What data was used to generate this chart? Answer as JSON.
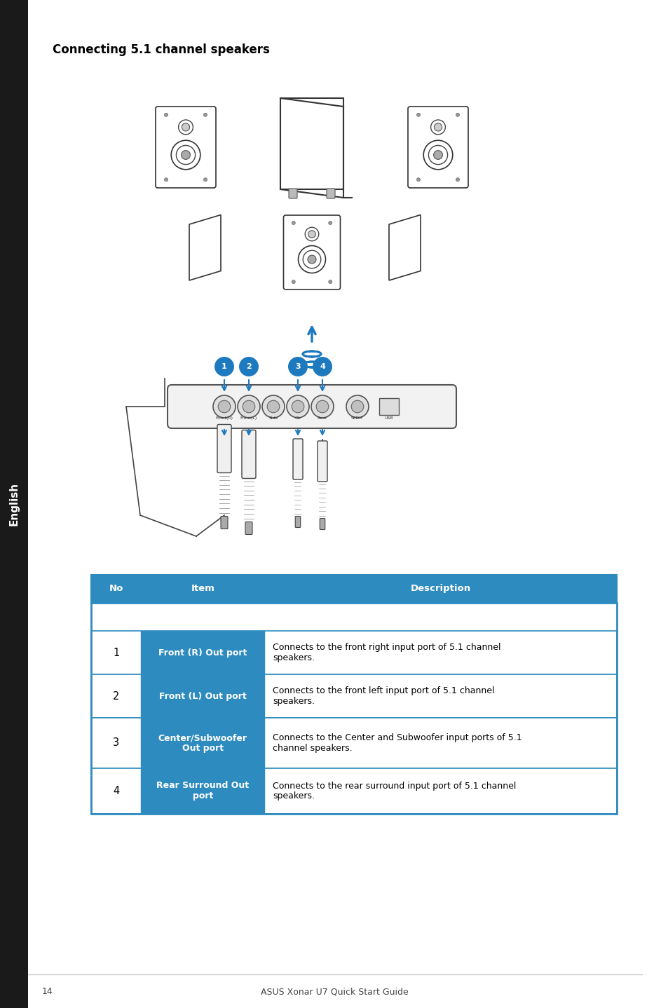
{
  "title": "Connecting 5.1 channel speakers",
  "title_fontsize": 12,
  "sidebar_label": "English",
  "sidebar_color": "#1a1a1a",
  "page_number": "14",
  "footer_text": "ASUS Xonar U7 Quick Start Guide",
  "table_header": [
    "No",
    "Item",
    "Description"
  ],
  "table_header_color": "#2e8bc0",
  "table_rows": [
    [
      "1",
      "Front (R) Out port",
      "Connects to the front right input port of 5.1 channel\nspeakers."
    ],
    [
      "2",
      "Front (L) Out port",
      "Connects to the front left input port of 5.1 channel\nspeakers."
    ],
    [
      "3",
      "Center/Subwoofer\nOut port",
      "Connects to the Center and Subwoofer input ports of 5.1\nchannel speakers."
    ],
    [
      "4",
      "Rear Surround Out\nport",
      "Connects to the rear surround input port of 5.1 channel\nspeakers."
    ]
  ],
  "table_item_color": "#2e8bc0",
  "table_border_color": "#2e8bc0",
  "background_color": "#ffffff",
  "blue_arrow_color": "#1e7abf",
  "port_labels": [
    "Front(R)",
    "Front(L)",
    "Side",
    "Ctr",
    "Rear",
    "SPDIF",
    "USB"
  ]
}
